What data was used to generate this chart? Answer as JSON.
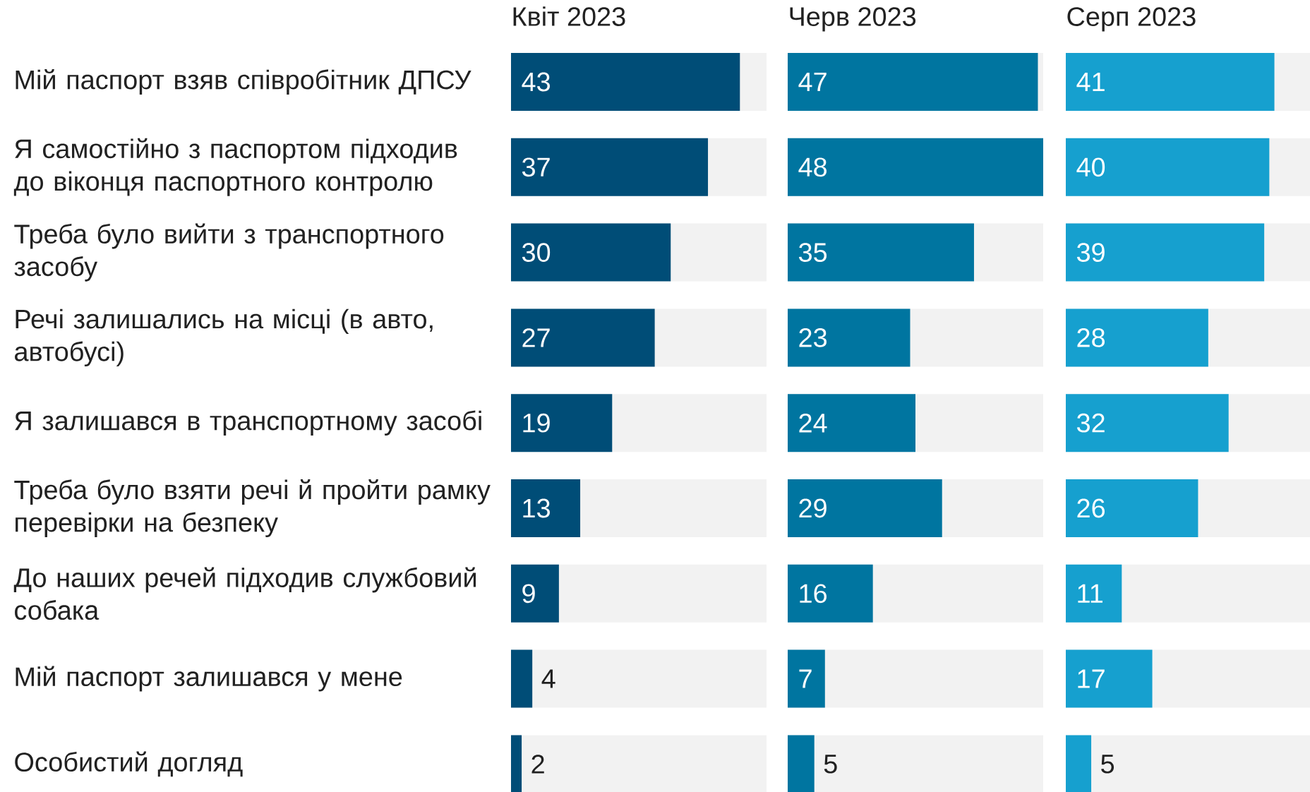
{
  "chart_data": [
    {
      "type": "bar",
      "orientation": "horizontal",
      "title": "Квіт 2023",
      "tick_labels": "y",
      "data_labels": true,
      "xlim": [
        0,
        48
      ],
      "color": "#004d77",
      "categories": [
        "Мій паспорт взяв співробітник ДПСУ",
        "Я самостійно з паспортом підходив до віконця паспортного контролю",
        "Треба було вийти з транспортного засобу",
        "Речі залишались на місці (в авто, автобусі)",
        "Я залишався в транспортному засобі",
        "Треба було взяти речі й пройти рамку перевірки на безпеку",
        "До наших речей підходив службовий собака",
        "Мій паспорт залишався у мене",
        "Особистий догляд"
      ],
      "values": [
        43,
        37,
        30,
        27,
        19,
        13,
        9,
        4,
        2
      ]
    },
    {
      "type": "bar",
      "orientation": "horizontal",
      "title": "Черв 2023",
      "tick_labels": false,
      "data_labels": true,
      "xlim": [
        0,
        48
      ],
      "color": "#0075a0",
      "values": [
        47,
        48,
        35,
        23,
        24,
        29,
        16,
        7,
        5
      ]
    },
    {
      "type": "bar",
      "orientation": "horizontal",
      "title": "Серп 2023",
      "tick_labels": false,
      "data_labels": true,
      "xlim": [
        0,
        48
      ],
      "color": "#16a0cf",
      "values": [
        41,
        40,
        39,
        28,
        32,
        26,
        11,
        17,
        5
      ]
    }
  ]
}
